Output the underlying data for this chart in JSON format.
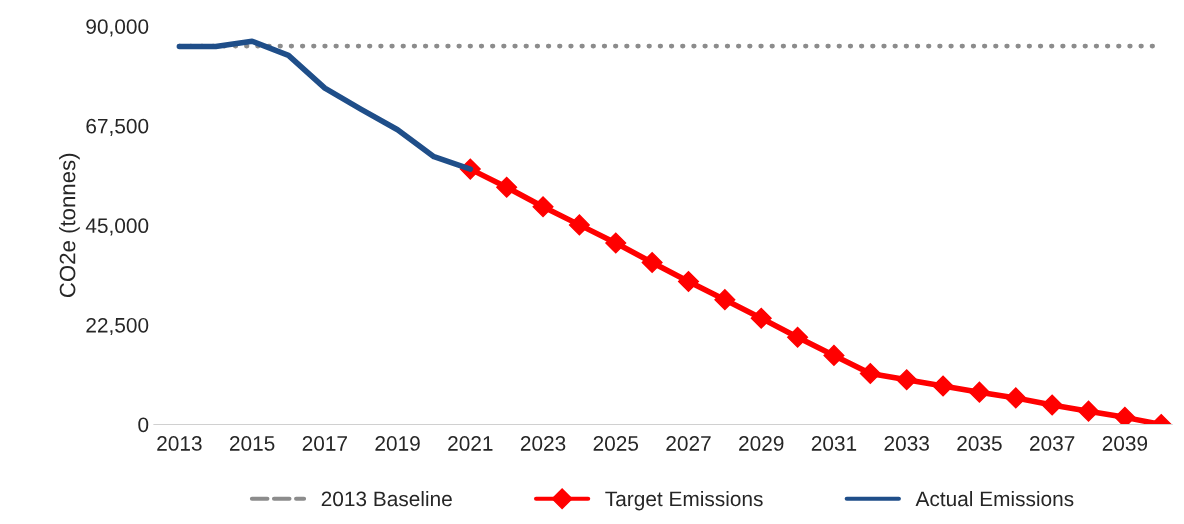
{
  "chart_data": {
    "type": "line",
    "ylabel": "CO2e (tonnes)",
    "categories": [
      "2013",
      null,
      "2015",
      null,
      "2017",
      null,
      "2019",
      null,
      "2021",
      null,
      "2023",
      null,
      "2025",
      null,
      "2027",
      null,
      "2029",
      null,
      "2031",
      null,
      "2033",
      null,
      "2035",
      null,
      "2037",
      null,
      "2039",
      null
    ],
    "series": [
      {
        "name": "2013 Baseline",
        "color": "#8c8c8c",
        "line_style": "dotted",
        "marker": "none",
        "values": [
          85500,
          85500,
          85500,
          85500,
          85500,
          85500,
          85500,
          85500,
          85500,
          85500,
          85500,
          85500,
          85500,
          85500,
          85500,
          85500,
          85500,
          85500,
          85500,
          85500,
          85500,
          85500,
          85500,
          85500,
          85500,
          85500,
          85500,
          85500
        ]
      },
      {
        "name": "Target Emissions",
        "color": "#ff0000",
        "line_style": "solid",
        "marker": "diamond",
        "values": [
          null,
          null,
          null,
          null,
          null,
          null,
          null,
          null,
          57700,
          53600,
          49200,
          45100,
          41000,
          36600,
          32300,
          28200,
          24000,
          19700,
          15600,
          11500,
          10100,
          8700,
          7300,
          6000,
          4400,
          3000,
          1600,
          0
        ]
      },
      {
        "name": "Actual Emissions",
        "color": "#1f4e89",
        "line_style": "solid",
        "marker": "none",
        "values": [
          85400,
          85400,
          86600,
          83400,
          76000,
          71200,
          66600,
          60500,
          57700,
          null,
          null,
          null,
          null,
          null,
          null,
          null,
          null,
          null,
          null,
          null,
          null,
          null,
          null,
          null,
          null,
          null,
          null,
          null
        ]
      }
    ],
    "ylim": [
      0,
      90000
    ],
    "yticks": [
      {
        "value": 0,
        "label": "0"
      },
      {
        "value": 22500,
        "label": "22,500"
      },
      {
        "value": 45000,
        "label": "45,000"
      },
      {
        "value": 67500,
        "label": "67,500"
      },
      {
        "value": 90000,
        "label": "90,000"
      }
    ],
    "grid": false,
    "legend": "bottom"
  }
}
